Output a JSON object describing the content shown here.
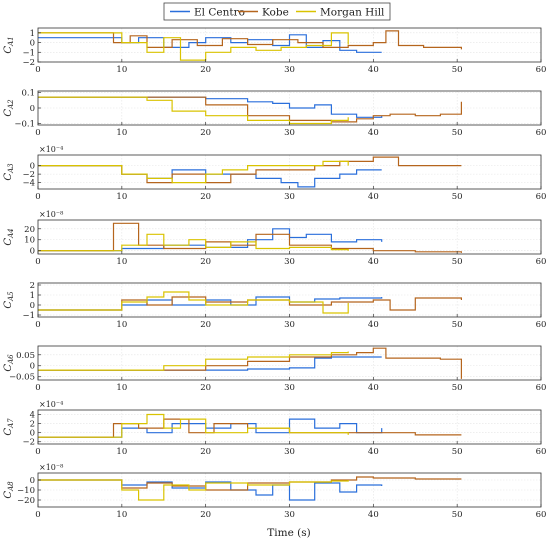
{
  "chart_data": {
    "type": "line",
    "xlabel": "Time (s)",
    "xlim": [
      0,
      60
    ],
    "xticks": [
      0,
      10,
      20,
      30,
      40,
      50,
      60
    ],
    "grid": true,
    "legend": {
      "placement": "top-center",
      "orientation": "horizontal"
    },
    "series_styles": [
      {
        "name": "El Centro",
        "color": "#2a6fdb"
      },
      {
        "name": "Kobe",
        "color": "#b5651d"
      },
      {
        "name": "Morgan Hill",
        "color": "#d9c300"
      }
    ],
    "panels": [
      {
        "ylabel": "C",
        "ysub": "A1",
        "exponent": "",
        "ylim": [
          -2,
          1.5
        ],
        "yticks": [
          -2,
          -1,
          0,
          1
        ],
        "ytick_labels": [
          "−2",
          "−1",
          "0",
          "1"
        ],
        "series": [
          {
            "name": "El Centro",
            "x": [
              0,
              7.5,
              10,
              12,
              15,
              18,
              20,
              23,
              25,
              28,
              30,
              32,
              34,
              36,
              38,
              41
            ],
            "y": [
              0.5,
              0.5,
              0,
              0.5,
              -0.5,
              0,
              0.5,
              0,
              0.3,
              -0.3,
              0.8,
              -0.5,
              0.2,
              -0.8,
              -1,
              -1
            ]
          },
          {
            "name": "Kobe",
            "x": [
              0,
              7.5,
              9,
              11,
              13,
              16,
              19,
              22,
              25,
              28,
              31,
              34,
              37,
              40,
              41.5,
              43,
              46,
              50.5
            ],
            "y": [
              1,
              1,
              0,
              0.7,
              -0.5,
              0.3,
              -0.3,
              0.4,
              -0.2,
              0.3,
              0,
              -0.5,
              -0.3,
              0,
              1.2,
              -0.3,
              -0.5,
              -0.7
            ]
          },
          {
            "name": "Morgan Hill",
            "x": [
              0,
              7.5,
              10,
              13,
              15,
              17,
              20,
              23,
              26,
              29,
              32,
              35,
              37
            ],
            "y": [
              1,
              1,
              0,
              -1,
              0.5,
              -1.8,
              -1,
              -0.5,
              -0.8,
              -0.5,
              -0.3,
              1,
              -0.2
            ]
          }
        ]
      },
      {
        "ylabel": "C",
        "ysub": "A2",
        "exponent": "",
        "ylim": [
          -0.11,
          0.11
        ],
        "yticks": [
          -0.1,
          0,
          0.1
        ],
        "ytick_labels": [
          "−0.1",
          "0",
          "0.1"
        ],
        "series": [
          {
            "name": "El Centro",
            "x": [
              0,
              7.5,
              10,
              15,
              20,
              25,
              28,
              30,
              33,
              35,
              38,
              41
            ],
            "y": [
              0.07,
              0.07,
              0.07,
              0.07,
              0.06,
              0.04,
              0.03,
              0,
              0.02,
              -0.04,
              -0.06,
              -0.05
            ]
          },
          {
            "name": "Kobe",
            "x": [
              0,
              7.5,
              10,
              15,
              20,
              25,
              30,
              35,
              38,
              40,
              42,
              45,
              48,
              50.5
            ],
            "y": [
              0.07,
              0.07,
              0.07,
              0.07,
              0.02,
              -0.05,
              -0.08,
              -0.09,
              -0.07,
              -0.05,
              -0.04,
              -0.05,
              -0.04,
              0.04
            ]
          },
          {
            "name": "Morgan Hill",
            "x": [
              0,
              7.5,
              10,
              13,
              16,
              20,
              25,
              30,
              35,
              37
            ],
            "y": [
              0.07,
              0.07,
              0.07,
              0.05,
              -0.02,
              -0.05,
              -0.08,
              -0.1,
              -0.08,
              -0.06
            ]
          }
        ]
      },
      {
        "ylabel": "C",
        "ysub": "A3",
        "exponent": "×10⁻⁴",
        "ylim": [
          -5.5,
          2.5
        ],
        "yticks": [
          -4,
          -2,
          0
        ],
        "ytick_labels": [
          "−4",
          "−2",
          "0"
        ],
        "series": [
          {
            "name": "El Centro",
            "x": [
              0,
              7.5,
              10,
              13,
              16,
              20,
              23,
              26,
              29,
              31,
              33,
              36,
              38,
              41
            ],
            "y": [
              0,
              0,
              -2,
              -3,
              -1,
              -2,
              -2,
              -3,
              -4,
              -5,
              -3,
              -2,
              -1,
              -1
            ]
          },
          {
            "name": "Kobe",
            "x": [
              0,
              7.5,
              10,
              13,
              16,
              20,
              23,
              26,
              30,
              33,
              36,
              40,
              43,
              46,
              50.5
            ],
            "y": [
              0,
              0,
              -2,
              -4,
              -2,
              -4,
              -2,
              -1,
              -1,
              0,
              1,
              2,
              0,
              0,
              0
            ]
          },
          {
            "name": "Morgan Hill",
            "x": [
              0,
              7.5,
              10,
              13,
              16,
              20,
              22,
              25,
              30,
              34,
              37
            ],
            "y": [
              0,
              0,
              -2,
              -3,
              -4,
              -2,
              -1,
              0,
              0,
              1,
              0
            ]
          }
        ]
      },
      {
        "ylabel": "C",
        "ysub": "A4",
        "exponent": "×10⁻⁸",
        "ylim": [
          -3,
          28
        ],
        "yticks": [
          0,
          10,
          20
        ],
        "ytick_labels": [
          "0",
          "10",
          "20"
        ],
        "series": [
          {
            "name": "El Centro",
            "x": [
              0,
              7.5,
              10,
              15,
              20,
              25,
              28,
              30,
              32,
              35,
              38,
              41
            ],
            "y": [
              0,
              0,
              2,
              5,
              3,
              10,
              20,
              12,
              15,
              8,
              10,
              8
            ]
          },
          {
            "name": "Kobe",
            "x": [
              0,
              7.5,
              9,
              12,
              15,
              20,
              23,
              26,
              30,
              35,
              40,
              45,
              50.5
            ],
            "y": [
              0,
              0,
              25,
              5,
              2,
              8,
              5,
              15,
              5,
              2,
              0,
              -1,
              -2
            ]
          },
          {
            "name": "Morgan Hill",
            "x": [
              0,
              7.5,
              10,
              13,
              15,
              18,
              20,
              23,
              26,
              30,
              35,
              37
            ],
            "y": [
              0,
              0,
              5,
              15,
              5,
              10,
              3,
              8,
              2,
              3,
              1,
              0
            ]
          }
        ]
      },
      {
        "ylabel": "C",
        "ysub": "A5",
        "exponent": "",
        "ylim": [
          -1.2,
          2.2
        ],
        "yticks": [
          -1,
          0,
          1,
          2
        ],
        "ytick_labels": [
          "−1",
          "0",
          "1",
          "2"
        ],
        "series": [
          {
            "name": "El Centro",
            "x": [
              0,
              7.5,
              10,
              13,
              16,
              20,
              23,
              26,
              30,
              33,
              36,
              41
            ],
            "y": [
              -0.5,
              -0.5,
              0,
              0.5,
              0,
              0.5,
              0,
              0.8,
              0.3,
              0.6,
              0.7,
              0.8
            ]
          },
          {
            "name": "Kobe",
            "x": [
              0,
              7.5,
              10,
              13,
              16,
              20,
              25,
              30,
              35,
              40,
              42,
              45,
              50.5
            ],
            "y": [
              -0.5,
              -0.5,
              0.5,
              0,
              0.8,
              0.3,
              0.5,
              0,
              0.3,
              0.5,
              -0.5,
              0.7,
              0.5
            ]
          },
          {
            "name": "Morgan Hill",
            "x": [
              0,
              7.5,
              10,
              13,
              15,
              18,
              20,
              25,
              30,
              34,
              37
            ],
            "y": [
              -0.5,
              -0.5,
              0.3,
              0.8,
              1.3,
              0.5,
              0,
              0.5,
              0.3,
              -0.8,
              0.2
            ]
          }
        ]
      },
      {
        "ylabel": "C",
        "ysub": "A6",
        "exponent": "",
        "ylim": [
          -0.065,
          0.09
        ],
        "yticks": [
          -0.05,
          0,
          0.05
        ],
        "ytick_labels": [
          "−0.05",
          "0",
          "0.05"
        ],
        "series": [
          {
            "name": "El Centro",
            "x": [
              0,
              7.5,
              15,
              20,
              25,
              30,
              33,
              35,
              38,
              41
            ],
            "y": [
              -0.02,
              -0.02,
              -0.02,
              -0.02,
              -0.015,
              -0.01,
              0.035,
              0.04,
              0.04,
              0.04
            ]
          },
          {
            "name": "Kobe",
            "x": [
              0,
              7.5,
              15,
              20,
              25,
              30,
              35,
              38,
              40,
              41.5,
              45,
              48,
              50.5
            ],
            "y": [
              -0.02,
              -0.02,
              -0.02,
              0,
              0.02,
              0.04,
              0.05,
              0.06,
              0.08,
              0.035,
              0.035,
              0.03,
              -0.06
            ]
          },
          {
            "name": "Morgan Hill",
            "x": [
              0,
              7.5,
              15,
              20,
              25,
              30,
              35,
              37
            ],
            "y": [
              -0.02,
              -0.02,
              0,
              0.03,
              0.04,
              0.05,
              0.06,
              0.065
            ]
          }
        ]
      },
      {
        "ylabel": "C",
        "ysub": "A7",
        "exponent": "×10⁻⁴",
        "ylim": [
          -2.5,
          5
        ],
        "yticks": [
          -2,
          0,
          2,
          4
        ],
        "ytick_labels": [
          "−2",
          "0",
          "2",
          "4"
        ],
        "series": [
          {
            "name": "El Centro",
            "x": [
              0,
              7.5,
              10,
              13,
              16,
              20,
              23,
              26,
              30,
              33,
              36,
              38,
              41
            ],
            "y": [
              -1,
              -1,
              1,
              0,
              2,
              1,
              2,
              0,
              3,
              1,
              2,
              0,
              1
            ]
          },
          {
            "name": "Kobe",
            "x": [
              0,
              7.5,
              9,
              12,
              15,
              18,
              21,
              25,
              30,
              35,
              40,
              45,
              50.5
            ],
            "y": [
              -1,
              -1,
              2,
              1,
              3,
              0,
              2,
              1,
              0,
              0,
              0,
              -0.5,
              -0.5
            ]
          },
          {
            "name": "Morgan Hill",
            "x": [
              0,
              7.5,
              10,
              13,
              15,
              17,
              20,
              25,
              30,
              35,
              37
            ],
            "y": [
              -1,
              -1,
              2,
              4,
              1,
              3,
              0,
              1,
              0,
              0,
              -0.5
            ]
          }
        ]
      },
      {
        "ylabel": "C",
        "ysub": "A8",
        "exponent": "×10⁻⁸",
        "ylim": [
          -27,
          7
        ],
        "yticks": [
          -20,
          -10,
          0
        ],
        "ytick_labels": [
          "−20",
          "−10",
          "0"
        ],
        "series": [
          {
            "name": "El Centro",
            "x": [
              0,
              7.5,
              10,
              13,
              16,
              20,
              23,
              26,
              28,
              30,
              33,
              36,
              38,
              41
            ],
            "y": [
              0,
              0,
              -5,
              -2,
              -8,
              -2,
              -10,
              -15,
              -5,
              -20,
              -3,
              -12,
              -5,
              -6
            ]
          },
          {
            "name": "Kobe",
            "x": [
              0,
              7.5,
              10,
              13,
              16,
              20,
              25,
              30,
              35,
              38,
              40,
              45,
              50.5
            ],
            "y": [
              0,
              0,
              -8,
              -3,
              -6,
              -10,
              -3,
              -2,
              0,
              3,
              2,
              1,
              1
            ]
          },
          {
            "name": "Morgan Hill",
            "x": [
              0,
              7.5,
              10,
              12,
              15,
              18,
              20,
              25,
              30,
              35,
              37
            ],
            "y": [
              0,
              0,
              -10,
              -20,
              -5,
              -10,
              -3,
              -5,
              -2,
              -1,
              0
            ]
          }
        ]
      }
    ]
  }
}
